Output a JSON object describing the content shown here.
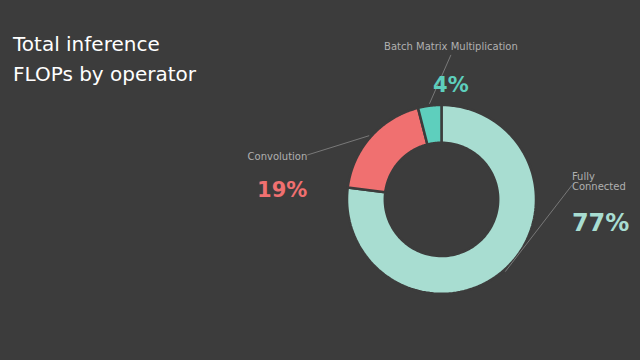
{
  "chart_data": {
    "type": "donut",
    "title": "Total inference\nFLOPs by operator",
    "categories": [
      "Fully\nConnected",
      "Convolution",
      "Batch Matrix Multiplication"
    ],
    "values": [
      77,
      19,
      4
    ],
    "value_labels": [
      "77%",
      "19%",
      "4%"
    ],
    "colors": [
      "#a8ddd1",
      "#f07070",
      "#5ecfbd"
    ],
    "data_labels": true
  }
}
